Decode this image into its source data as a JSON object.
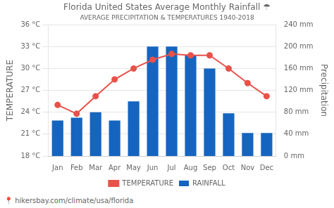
{
  "chart_data": {
    "type": "bar",
    "title": "Florida United States Average Monthly Rainfall ☂",
    "subtitle": "AVERAGE PRECIPITATION & TEMPERATURES 1940-2018",
    "categories": [
      "Jan",
      "Feb",
      "Mar",
      "Apr",
      "May",
      "Jun",
      "Jul",
      "Aug",
      "Sep",
      "Oct",
      "Nov",
      "Dec"
    ],
    "series": [
      {
        "name": "TEMPERATURE",
        "type": "line",
        "color": "#e8524a",
        "marker": "circle",
        "values": [
          25.0,
          23.8,
          26.2,
          28.5,
          30.0,
          31.2,
          32.0,
          31.8,
          31.8,
          30.0,
          28.0,
          26.2
        ]
      },
      {
        "name": "RAINFALL",
        "type": "bar",
        "color": "#1565c0",
        "axis": "y2",
        "values": [
          65,
          70,
          80,
          65,
          100,
          200,
          200,
          185,
          160,
          78,
          42,
          42
        ]
      }
    ],
    "ylabel": "TEMPERATURE",
    "y2label": "Precipitation",
    "ylim": [
      18,
      36
    ],
    "yticks": [
      {
        "value": 18,
        "label": "18 °C"
      },
      {
        "value": 21,
        "label": "21 °C"
      },
      {
        "value": 24,
        "label": "24 °C"
      },
      {
        "value": 27,
        "label": "27 °C"
      },
      {
        "value": 30,
        "label": "30 °C"
      },
      {
        "value": 33,
        "label": "33 °C"
      },
      {
        "value": 36,
        "label": "36 °C"
      }
    ],
    "y2lim": [
      0,
      240
    ],
    "y2ticks": [
      {
        "value": 0,
        "label": "0 mm"
      },
      {
        "value": 40,
        "label": "40 mm"
      },
      {
        "value": 80,
        "label": "80 mm"
      },
      {
        "value": 120,
        "label": "120 mm"
      },
      {
        "value": 160,
        "label": "160 mm"
      },
      {
        "value": 200,
        "label": "200 mm"
      },
      {
        "value": 240,
        "label": "240 mm"
      }
    ],
    "grid": true,
    "legend": "bottom",
    "annotations": [
      "📍 hikersbay.com/climate/usa/florida"
    ]
  }
}
